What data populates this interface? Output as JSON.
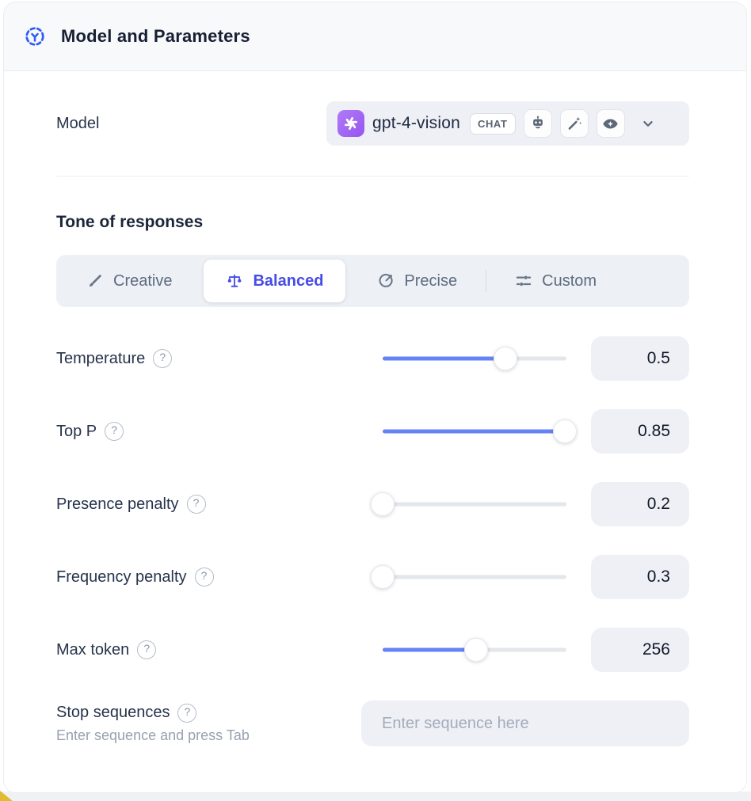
{
  "header": {
    "title": "Model and Parameters"
  },
  "model_row": {
    "label": "Model",
    "selected_model": "gpt-4-vision",
    "mode_badge": "CHAT",
    "capability_icons": [
      "robot-icon",
      "magic-wand-icon",
      "vision-eye-icon"
    ]
  },
  "tone": {
    "heading": "Tone of responses",
    "options": [
      {
        "label": "Creative",
        "icon": "brush-icon",
        "selected": false
      },
      {
        "label": "Balanced",
        "icon": "balance-scale-icon",
        "selected": true
      },
      {
        "label": "Precise",
        "icon": "target-icon",
        "selected": false
      },
      {
        "label": "Custom",
        "icon": "sliders-icon",
        "selected": false
      }
    ]
  },
  "parameters": [
    {
      "label": "Temperature",
      "value": "0.5",
      "slider_percent": 67
    },
    {
      "label": "Top P",
      "value": "0.85",
      "slider_percent": 99
    },
    {
      "label": "Presence penalty",
      "value": "0.2",
      "slider_percent": 0
    },
    {
      "label": "Frequency penalty",
      "value": "0.3",
      "slider_percent": 0
    },
    {
      "label": "Max token",
      "value": "256",
      "slider_percent": 51
    }
  ],
  "stop_sequences": {
    "label": "Stop sequences",
    "helper": "Enter sequence and press Tab",
    "placeholder": "Enter sequence here"
  },
  "help_glyph": "?",
  "colors": {
    "accent_indigo": "#474ce6",
    "slider_blue": "#6484f6",
    "brand_purple": "#9b5cf2",
    "header_icon_blue": "#2f5bf7"
  }
}
